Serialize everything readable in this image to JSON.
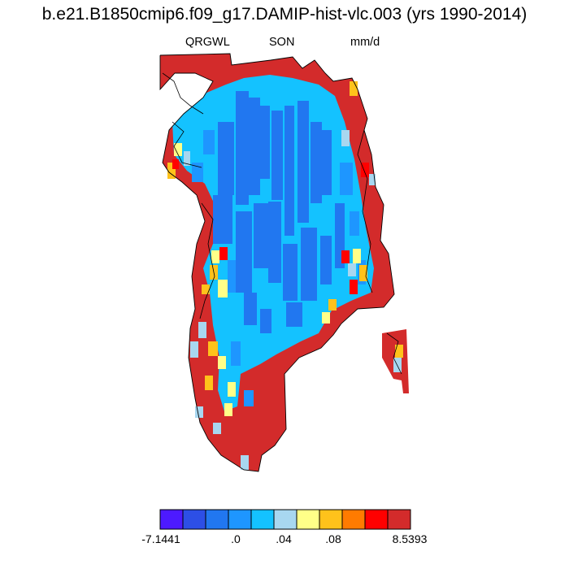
{
  "title": "b.e21.B1850cmip6.f09_g17.DAMIP-hist-vlc.003 (yrs 1990-2014)",
  "variable": "QRGWL",
  "season": "SON",
  "units": "mm/d",
  "colorbar": {
    "colors": [
      "#4d1aff",
      "#2d4fe6",
      "#2177f0",
      "#1e96ff",
      "#14c2ff",
      "#a8d7f0",
      "#ffff88",
      "#ffc21b",
      "#ff7b00",
      "#ff0000",
      "#d32b2b"
    ],
    "labels": [
      "-7.1441",
      ".0",
      ".04",
      ".08",
      "8.5393"
    ]
  },
  "map_colors": {
    "land_default": "#d32b2b",
    "ice_mid": "#14c2ff",
    "ice_dark": "#2177f0",
    "ice_deep": "#1e96ff",
    "pale": "#a8d7f0",
    "yellow": "#ffff88",
    "orange": "#ffc21b",
    "darkorange": "#ff7b00",
    "red": "#ff0000",
    "coast_line": "#000000"
  }
}
